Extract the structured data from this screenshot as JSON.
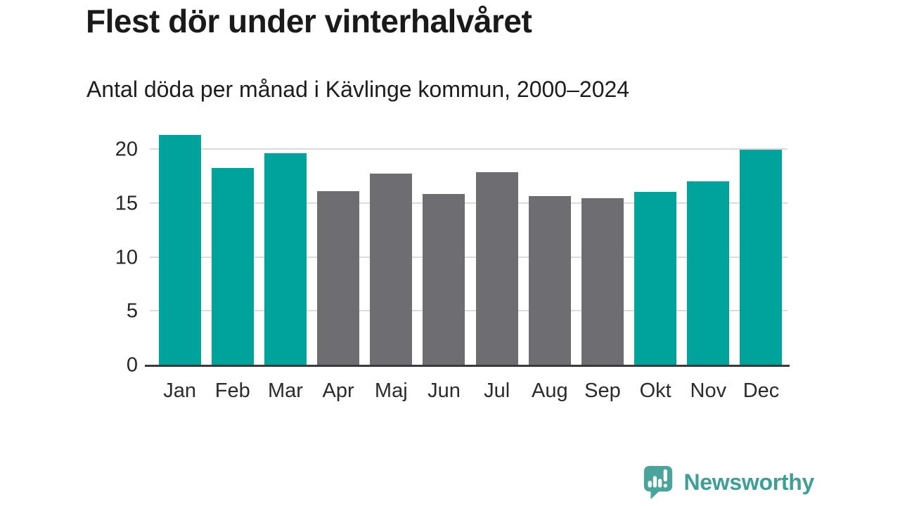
{
  "header": {
    "title": "Flest dör under vinterhalvåret",
    "subtitle": "Antal döda per månad i Kävlinge kommun, 2000–2024"
  },
  "chart_data": {
    "type": "bar",
    "title": "Flest dör under vinterhalvåret",
    "subtitle": "Antal döda per månad i Kävlinge kommun, 2000–2024",
    "categories": [
      "Jan",
      "Feb",
      "Mar",
      "Apr",
      "Maj",
      "Jun",
      "Jul",
      "Aug",
      "Sep",
      "Okt",
      "Nov",
      "Dec"
    ],
    "values": [
      21.4,
      18.3,
      19.7,
      16.2,
      17.8,
      15.9,
      17.9,
      15.7,
      15.5,
      16.1,
      17.1,
      20.0
    ],
    "bar_roles": [
      "highlight",
      "highlight",
      "highlight",
      "muted",
      "muted",
      "muted",
      "muted",
      "muted",
      "muted",
      "highlight",
      "highlight",
      "highlight"
    ],
    "xlabel": "",
    "ylabel": "",
    "yticks": [
      0,
      5,
      10,
      15,
      20
    ],
    "ylim": [
      0,
      21.84
    ],
    "grid": "horizontal",
    "legend": "none",
    "colors": {
      "highlight": "#00a39b",
      "muted": "#6e6e72",
      "gridline": "#dcdcdc",
      "axis_line": "#3a3a3a",
      "text": "#1a1a1a"
    }
  },
  "branding": {
    "logo_text": "Newsworthy",
    "logo_icon": "bar-chart-speech-bubble-icon",
    "logo_color": "#4aa49c",
    "text_color": "#3f9f98"
  }
}
